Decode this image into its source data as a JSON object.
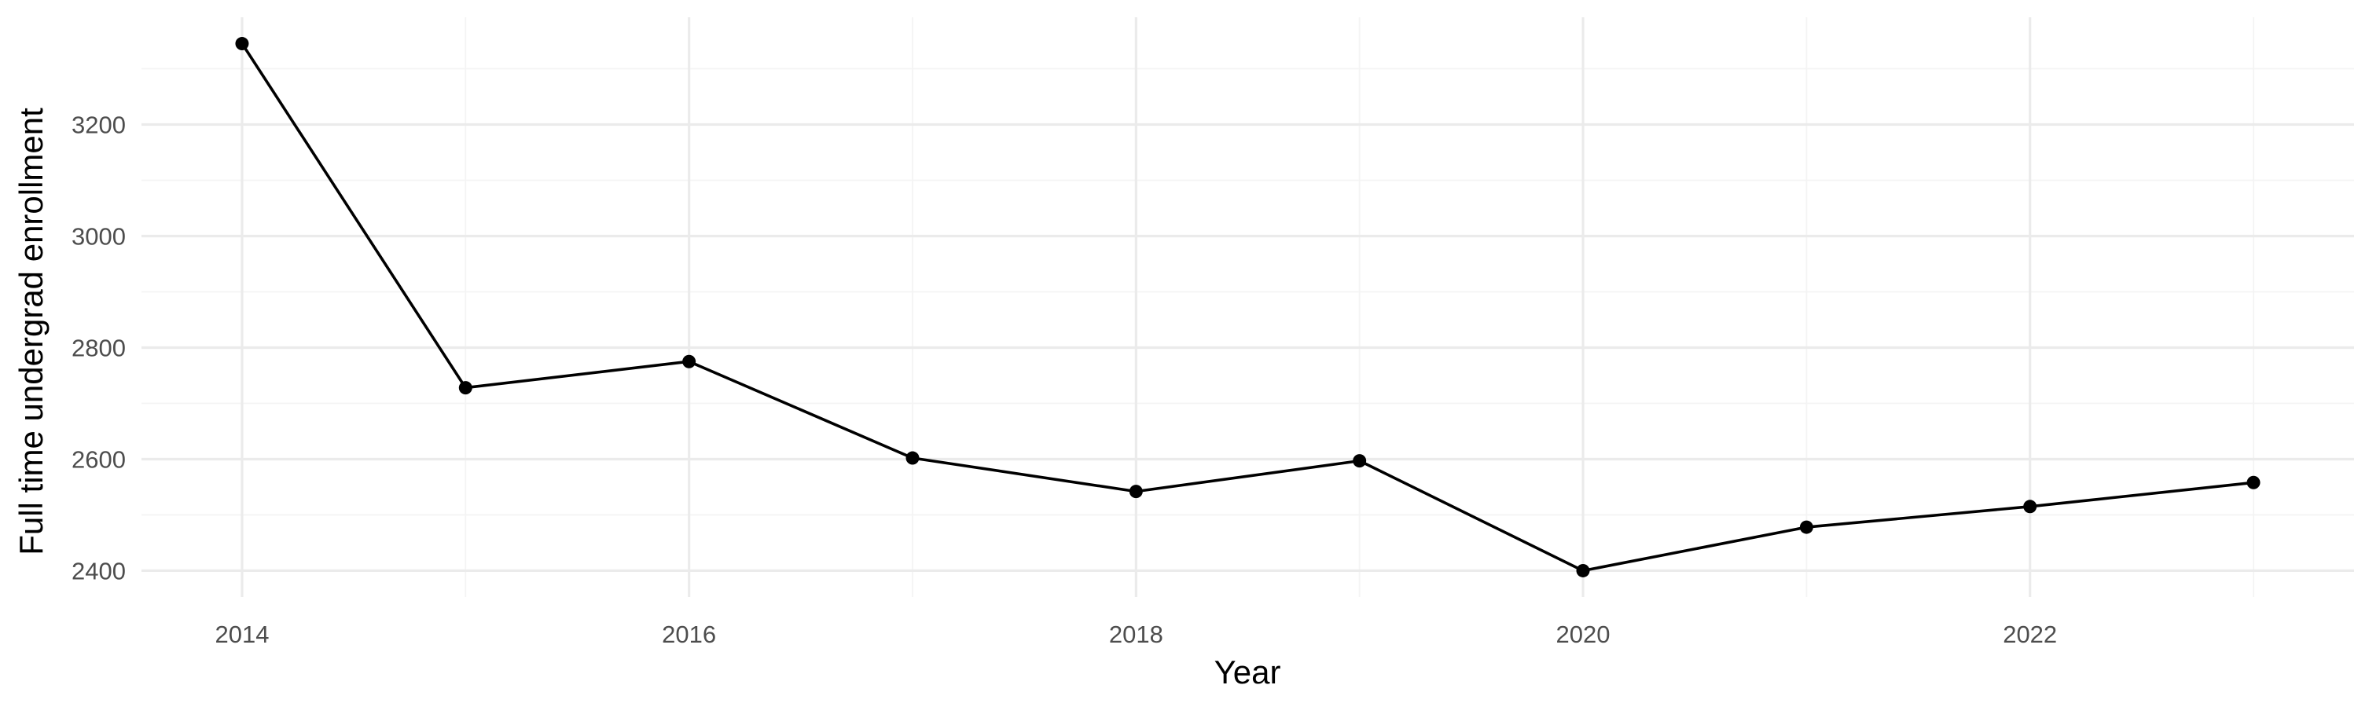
{
  "chart_data": {
    "type": "line",
    "title": "",
    "xlabel": "Year",
    "ylabel": "Full time undergrad enrollment",
    "x": [
      2014,
      2015,
      2016,
      2017,
      2018,
      2019,
      2020,
      2021,
      2022,
      2023
    ],
    "series": [
      {
        "values": [
          3345,
          2728,
          2775,
          2602,
          2542,
          2597,
          2400,
          2478,
          2515,
          2558
        ]
      }
    ],
    "xticks": [
      2014,
      2016,
      2018,
      2020,
      2022
    ],
    "yticks": [
      2400,
      2600,
      2800,
      3000,
      3200
    ],
    "xlim": [
      2013.55,
      2023.45
    ],
    "ylim": [
      2352.75,
      3392.25
    ],
    "grid": true,
    "legend": "none",
    "colors": {
      "line": "#000000",
      "point": "#000000",
      "grid": "#ebebeb",
      "background": "#ffffff"
    }
  }
}
